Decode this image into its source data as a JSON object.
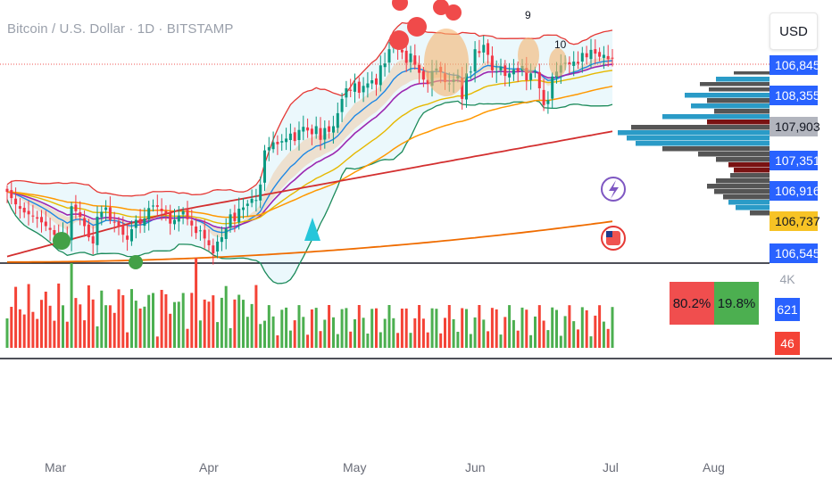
{
  "header": {
    "title": "Bitcoin / U.S. Dollar · 1D · BITSTAMP"
  },
  "currency_button": {
    "label": "USD"
  },
  "annotations": [
    "9",
    "10"
  ],
  "price_labels": [
    {
      "text": "106,845",
      "bg": "#2962ff",
      "fg": "#ffffff"
    },
    {
      "text": "108,355",
      "bg": "#2962ff",
      "fg": "#ffffff"
    },
    {
      "text": "107,903",
      "bg": "#b2b5be",
      "fg": "#131722"
    },
    {
      "text": "107,351",
      "bg": "#2962ff",
      "fg": "#ffffff"
    },
    {
      "text": "106,916",
      "bg": "#2962ff",
      "fg": "#ffffff"
    },
    {
      "text": "106,737",
      "bg": "#f7c325",
      "fg": "#131722"
    },
    {
      "text": "106,545",
      "bg": "#2962ff",
      "fg": "#ffffff"
    }
  ],
  "volume_ratio": {
    "sell": "80.2%",
    "buy": "19.8%"
  },
  "volume_labels": {
    "scale": "4K",
    "green_value": "621",
    "red_value": "46"
  },
  "colors": {
    "up": "#26a69a",
    "down": "#ef5350",
    "vol_up": "#4caf50",
    "vol_down": "#f44336",
    "bb": "#e53935",
    "ema_purple": "#9c27b0",
    "ema_orange": "#ff9800",
    "ema_yellow": "#e6b800",
    "ma_red": "#d32f2f",
    "ma_long": "#ef6c00",
    "accent": "#2962ff"
  },
  "chart_data": {
    "type": "candlestick",
    "symbol": "Bitcoin / U.S. Dollar",
    "interval": "1D",
    "exchange": "BITSTAMP",
    "x_labels": [
      "Mar",
      "Apr",
      "May",
      "Jun",
      "Jul",
      "Aug"
    ],
    "price_axis_labels": [
      "106,845",
      "108,355",
      "107,903",
      "107,351",
      "106,916",
      "106,737",
      "106,545"
    ],
    "closes": [
      86500,
      85500,
      84500,
      83800,
      83200,
      82900,
      82600,
      82200,
      81600,
      81000,
      80400,
      79600,
      79000,
      79800,
      78600,
      84200,
      83400,
      82500,
      81000,
      79200,
      78200,
      82500,
      83300,
      84000,
      82000,
      81700,
      80900,
      79600,
      78800,
      80500,
      82000,
      81300,
      82200,
      83900,
      84300,
      84100,
      83400,
      82900,
      81400,
      82000,
      82700,
      83400,
      82100,
      81100,
      79900,
      80300,
      79000,
      77900,
      76600,
      78500,
      79200,
      80600,
      82900,
      81800,
      83800,
      84000,
      84600,
      85400,
      85200,
      87700,
      93200,
      93700,
      94500,
      94200,
      94700,
      95100,
      95900,
      94700,
      96500,
      97000,
      96400,
      95800,
      97100,
      94900,
      96800,
      96200,
      97100,
      99200,
      101500,
      103200,
      102800,
      104000,
      102500,
      103600,
      104000,
      104500,
      103800,
      106900,
      107200,
      109500,
      111000,
      109600,
      109000,
      107300,
      108800,
      107000,
      105700,
      104600,
      103900,
      106000,
      106400,
      105800,
      104200,
      104000,
      104600,
      105200,
      101500,
      105600,
      105900,
      109500,
      108900,
      110200,
      108600,
      106100,
      105900,
      106700,
      105200,
      105600,
      106200,
      106000,
      106800,
      104500,
      105600,
      105900,
      103200,
      100500,
      101300,
      105100,
      105900,
      106900,
      107300,
      107100,
      107500,
      107200,
      108900,
      108200,
      109400,
      108800,
      108300,
      108600,
      107900,
      108100
    ],
    "volume_ratio": {
      "sell_pct": 80.2,
      "buy_pct": 19.8
    }
  }
}
